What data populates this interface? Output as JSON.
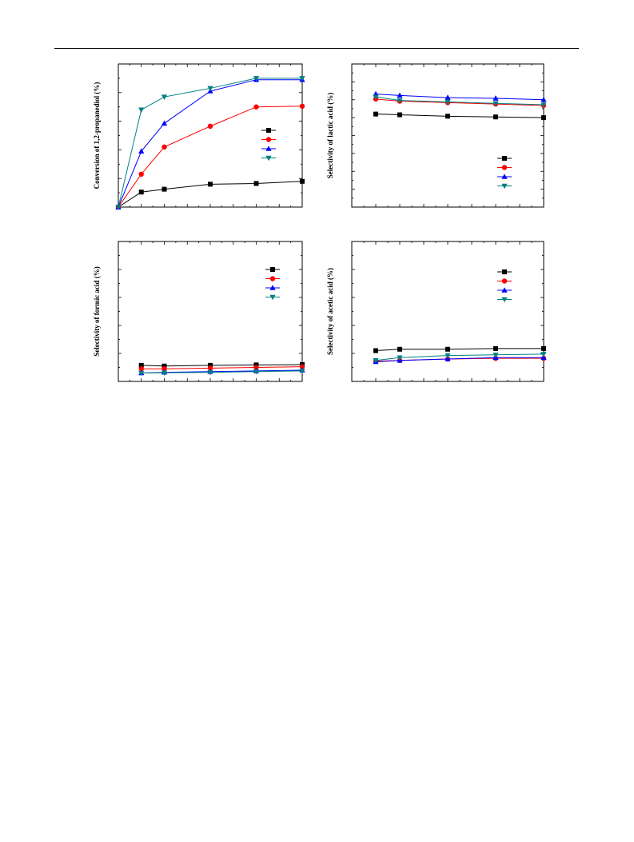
{
  "colors": {
    "s1": "#000000",
    "s2": "#ff0000",
    "s3": "#0000ff",
    "s4": "#008080"
  },
  "chart_data": [
    {
      "type": "line",
      "ylabel": "Conversion of 1,2-propanediol (%)",
      "xlim": [
        0,
        8
      ],
      "ylim": [
        0,
        100
      ],
      "x_ticks": 8,
      "y_ticks": 5,
      "legend": "right",
      "series": [
        {
          "marker": "square",
          "color": "#000000",
          "x": [
            0,
            1,
            2,
            4,
            6,
            8
          ],
          "y": [
            0,
            10.5,
            12.5,
            16,
            16.5,
            18
          ]
        },
        {
          "marker": "circle",
          "color": "#ff0000",
          "x": [
            0,
            1,
            2,
            4,
            6,
            8
          ],
          "y": [
            0,
            23,
            42,
            56.5,
            70,
            70.5
          ]
        },
        {
          "marker": "triangle-up",
          "color": "#0000ff",
          "x": [
            0,
            1,
            2,
            4,
            6,
            8
          ],
          "y": [
            0,
            39,
            58.5,
            81,
            89,
            89
          ]
        },
        {
          "marker": "triangle-down",
          "color": "#008080",
          "x": [
            0,
            1,
            2,
            4,
            6,
            8
          ],
          "y": [
            0,
            68,
            77,
            83,
            90,
            90
          ]
        }
      ]
    },
    {
      "type": "line",
      "ylabel": "Selectivity of lactic acid (%)",
      "xlim": [
        0,
        8
      ],
      "ylim": [
        0,
        100
      ],
      "x_ticks": 8,
      "y_ticks": 8,
      "legend": "lower-right",
      "series": [
        {
          "marker": "square",
          "color": "#000000",
          "x": [
            1,
            2,
            4,
            6,
            8
          ],
          "y": [
            65,
            64.5,
            63.5,
            63,
            62.5
          ]
        },
        {
          "marker": "circle",
          "color": "#ff0000",
          "x": [
            1,
            2,
            4,
            6,
            8
          ],
          "y": [
            75.5,
            74,
            73,
            72,
            71
          ]
        },
        {
          "marker": "triangle-up",
          "color": "#0000ff",
          "x": [
            1,
            2,
            4,
            6,
            8
          ],
          "y": [
            79,
            78,
            76.5,
            76,
            75
          ]
        },
        {
          "marker": "triangle-down",
          "color": "#008080",
          "x": [
            1,
            2,
            4,
            6,
            8
          ],
          "y": [
            77,
            74.5,
            73.5,
            72.5,
            71.5
          ]
        }
      ]
    },
    {
      "type": "line",
      "ylabel": "Selectivity of formic acid (%)",
      "xlim": [
        0,
        8
      ],
      "ylim": [
        0,
        100
      ],
      "x_ticks": 8,
      "y_ticks": 5,
      "legend": "top-right",
      "series": [
        {
          "marker": "square",
          "color": "#000000",
          "x": [
            1,
            2,
            4,
            6,
            8
          ],
          "y": [
            11.5,
            11,
            11.5,
            11.8,
            12
          ]
        },
        {
          "marker": "circle",
          "color": "#ff0000",
          "x": [
            1,
            2,
            4,
            6,
            8
          ],
          "y": [
            9,
            9,
            9.5,
            10,
            10.5
          ]
        },
        {
          "marker": "triangle-up",
          "color": "#0000ff",
          "x": [
            1,
            2,
            4,
            6,
            8
          ],
          "y": [
            6,
            6.5,
            7,
            7.5,
            8
          ]
        },
        {
          "marker": "triangle-down",
          "color": "#008080",
          "x": [
            1,
            2,
            4,
            6,
            8
          ],
          "y": [
            6,
            6.2,
            6.5,
            7,
            7.5
          ]
        }
      ]
    },
    {
      "type": "line",
      "ylabel": "Selectivity of acetic acid (%)",
      "xlim": [
        0,
        8
      ],
      "ylim": [
        0,
        100
      ],
      "x_ticks": 8,
      "y_ticks": 5,
      "legend": "top-right",
      "series": [
        {
          "marker": "square",
          "color": "#000000",
          "x": [
            1,
            2,
            4,
            6,
            8
          ],
          "y": [
            22,
            23,
            23,
            23.5,
            23.5
          ]
        },
        {
          "marker": "circle",
          "color": "#ff0000",
          "x": [
            1,
            2,
            4,
            6,
            8
          ],
          "y": [
            14.5,
            15,
            16,
            16.5,
            16.5
          ]
        },
        {
          "marker": "triangle-up",
          "color": "#0000ff",
          "x": [
            1,
            2,
            4,
            6,
            8
          ],
          "y": [
            14,
            15,
            16,
            17,
            17
          ]
        },
        {
          "marker": "triangle-down",
          "color": "#008080",
          "x": [
            1,
            2,
            4,
            6,
            8
          ],
          "y": [
            15,
            17,
            18.5,
            19,
            19.5
          ]
        }
      ]
    }
  ]
}
